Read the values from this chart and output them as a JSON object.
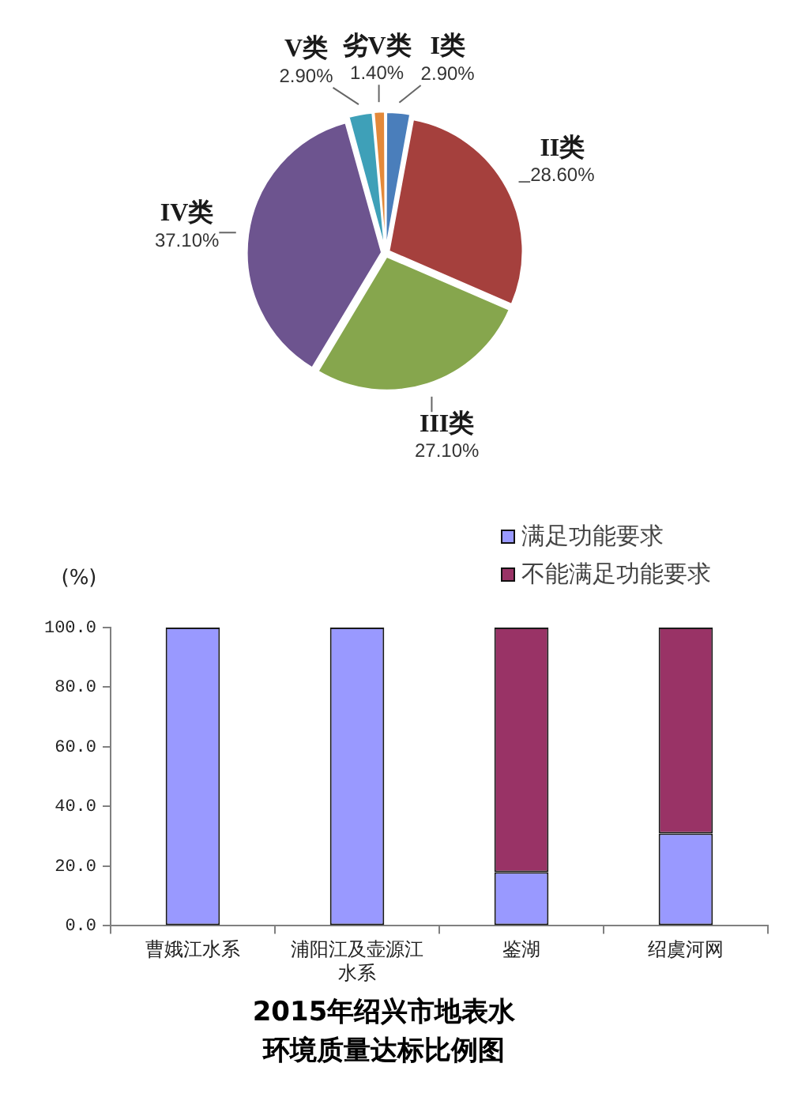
{
  "chart_data": [
    {
      "type": "pie",
      "categories": [
        "I类",
        "II类",
        "III类",
        "IV类",
        "V类",
        "劣V类"
      ],
      "values": [
        2.9,
        28.6,
        27.1,
        37.1,
        2.9,
        1.4
      ],
      "value_labels": [
        "2.90%",
        "28.60%",
        "27.10%",
        "37.10%",
        "2.90%",
        "1.40%"
      ],
      "colors": [
        "#4a7ebb",
        "#a5403d",
        "#86a64d",
        "#6d548f",
        "#3ea0b8",
        "#e3893a"
      ]
    },
    {
      "type": "bar",
      "stacked": true,
      "title": "2015年绍兴市地表水环境质量达标比例图",
      "ylabel": "(%)",
      "categories": [
        "曹娥江水系",
        "浦阳江及壶源江水系",
        "鉴湖",
        "绍虞河网"
      ],
      "series": [
        {
          "name": "满足功能要求",
          "color": "#9999ff",
          "values": [
            100,
            100,
            18,
            31
          ]
        },
        {
          "name": "不能满足功能要求",
          "color": "#993366",
          "values": [
            0,
            0,
            82,
            69
          ]
        }
      ],
      "ylim": [
        0,
        100
      ],
      "yticks": [
        {
          "value": 0,
          "label": "0.0"
        },
        {
          "value": 20,
          "label": "20.0"
        },
        {
          "value": 40,
          "label": "40.0"
        },
        {
          "value": 60,
          "label": "60.0"
        },
        {
          "value": 80,
          "label": "80.0"
        },
        {
          "value": 100,
          "label": "100.0"
        }
      ],
      "grid": false,
      "legend": "top right"
    }
  ]
}
